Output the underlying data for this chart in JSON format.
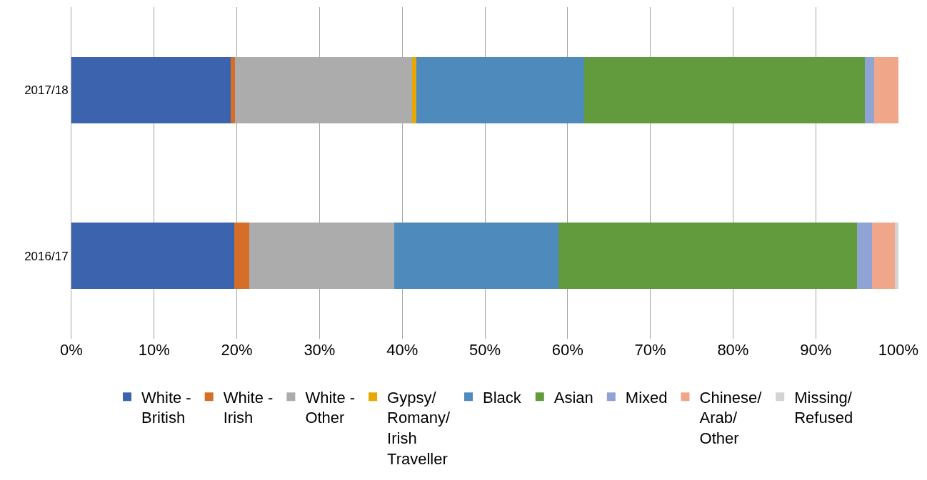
{
  "chart_data": {
    "type": "bar",
    "orientation": "horizontal",
    "stacked": true,
    "categories": [
      "2017/18",
      "2016/17"
    ],
    "series": [
      {
        "name": "White -\nBritish",
        "color": "#3c64ae",
        "values": [
          19.3,
          19.7
        ]
      },
      {
        "name": "White -\nIrish",
        "color": "#d46e29",
        "values": [
          0.5,
          1.8
        ]
      },
      {
        "name": "White -\nOther",
        "color": "#acacac",
        "values": [
          21.4,
          17.5
        ]
      },
      {
        "name": "Gypsy/\nRomany/\nIrish\nTraveller",
        "color": "#e8a800",
        "values": [
          0.5,
          0
        ]
      },
      {
        "name": "Black",
        "color": "#4f8abd",
        "values": [
          20.3,
          19.9
        ]
      },
      {
        "name": "Asian",
        "color": "#629a3e",
        "values": [
          33.9,
          36.1
        ]
      },
      {
        "name": "Mixed",
        "color": "#8fa3d4",
        "values": [
          1.2,
          1.8
        ]
      },
      {
        "name": "Chinese/\nArab/\nOther",
        "color": "#f0a789",
        "values": [
          2.9,
          2.8
        ]
      },
      {
        "name": "Missing/\nRefused",
        "color": "#d3d3d3",
        "values": [
          0,
          0.4
        ]
      }
    ],
    "xlim": [
      0,
      100
    ],
    "xticks": [
      {
        "value": 0,
        "label": "0%"
      },
      {
        "value": 10,
        "label": "10%"
      },
      {
        "value": 20,
        "label": "20%"
      },
      {
        "value": 30,
        "label": "30%"
      },
      {
        "value": 40,
        "label": "40%"
      },
      {
        "value": 50,
        "label": "50%"
      },
      {
        "value": 60,
        "label": "60%"
      },
      {
        "value": 70,
        "label": "70%"
      },
      {
        "value": 80,
        "label": "80%"
      },
      {
        "value": 90,
        "label": "90%"
      },
      {
        "value": 100,
        "label": "100%"
      }
    ],
    "grid": "x",
    "legend": "bottom"
  }
}
